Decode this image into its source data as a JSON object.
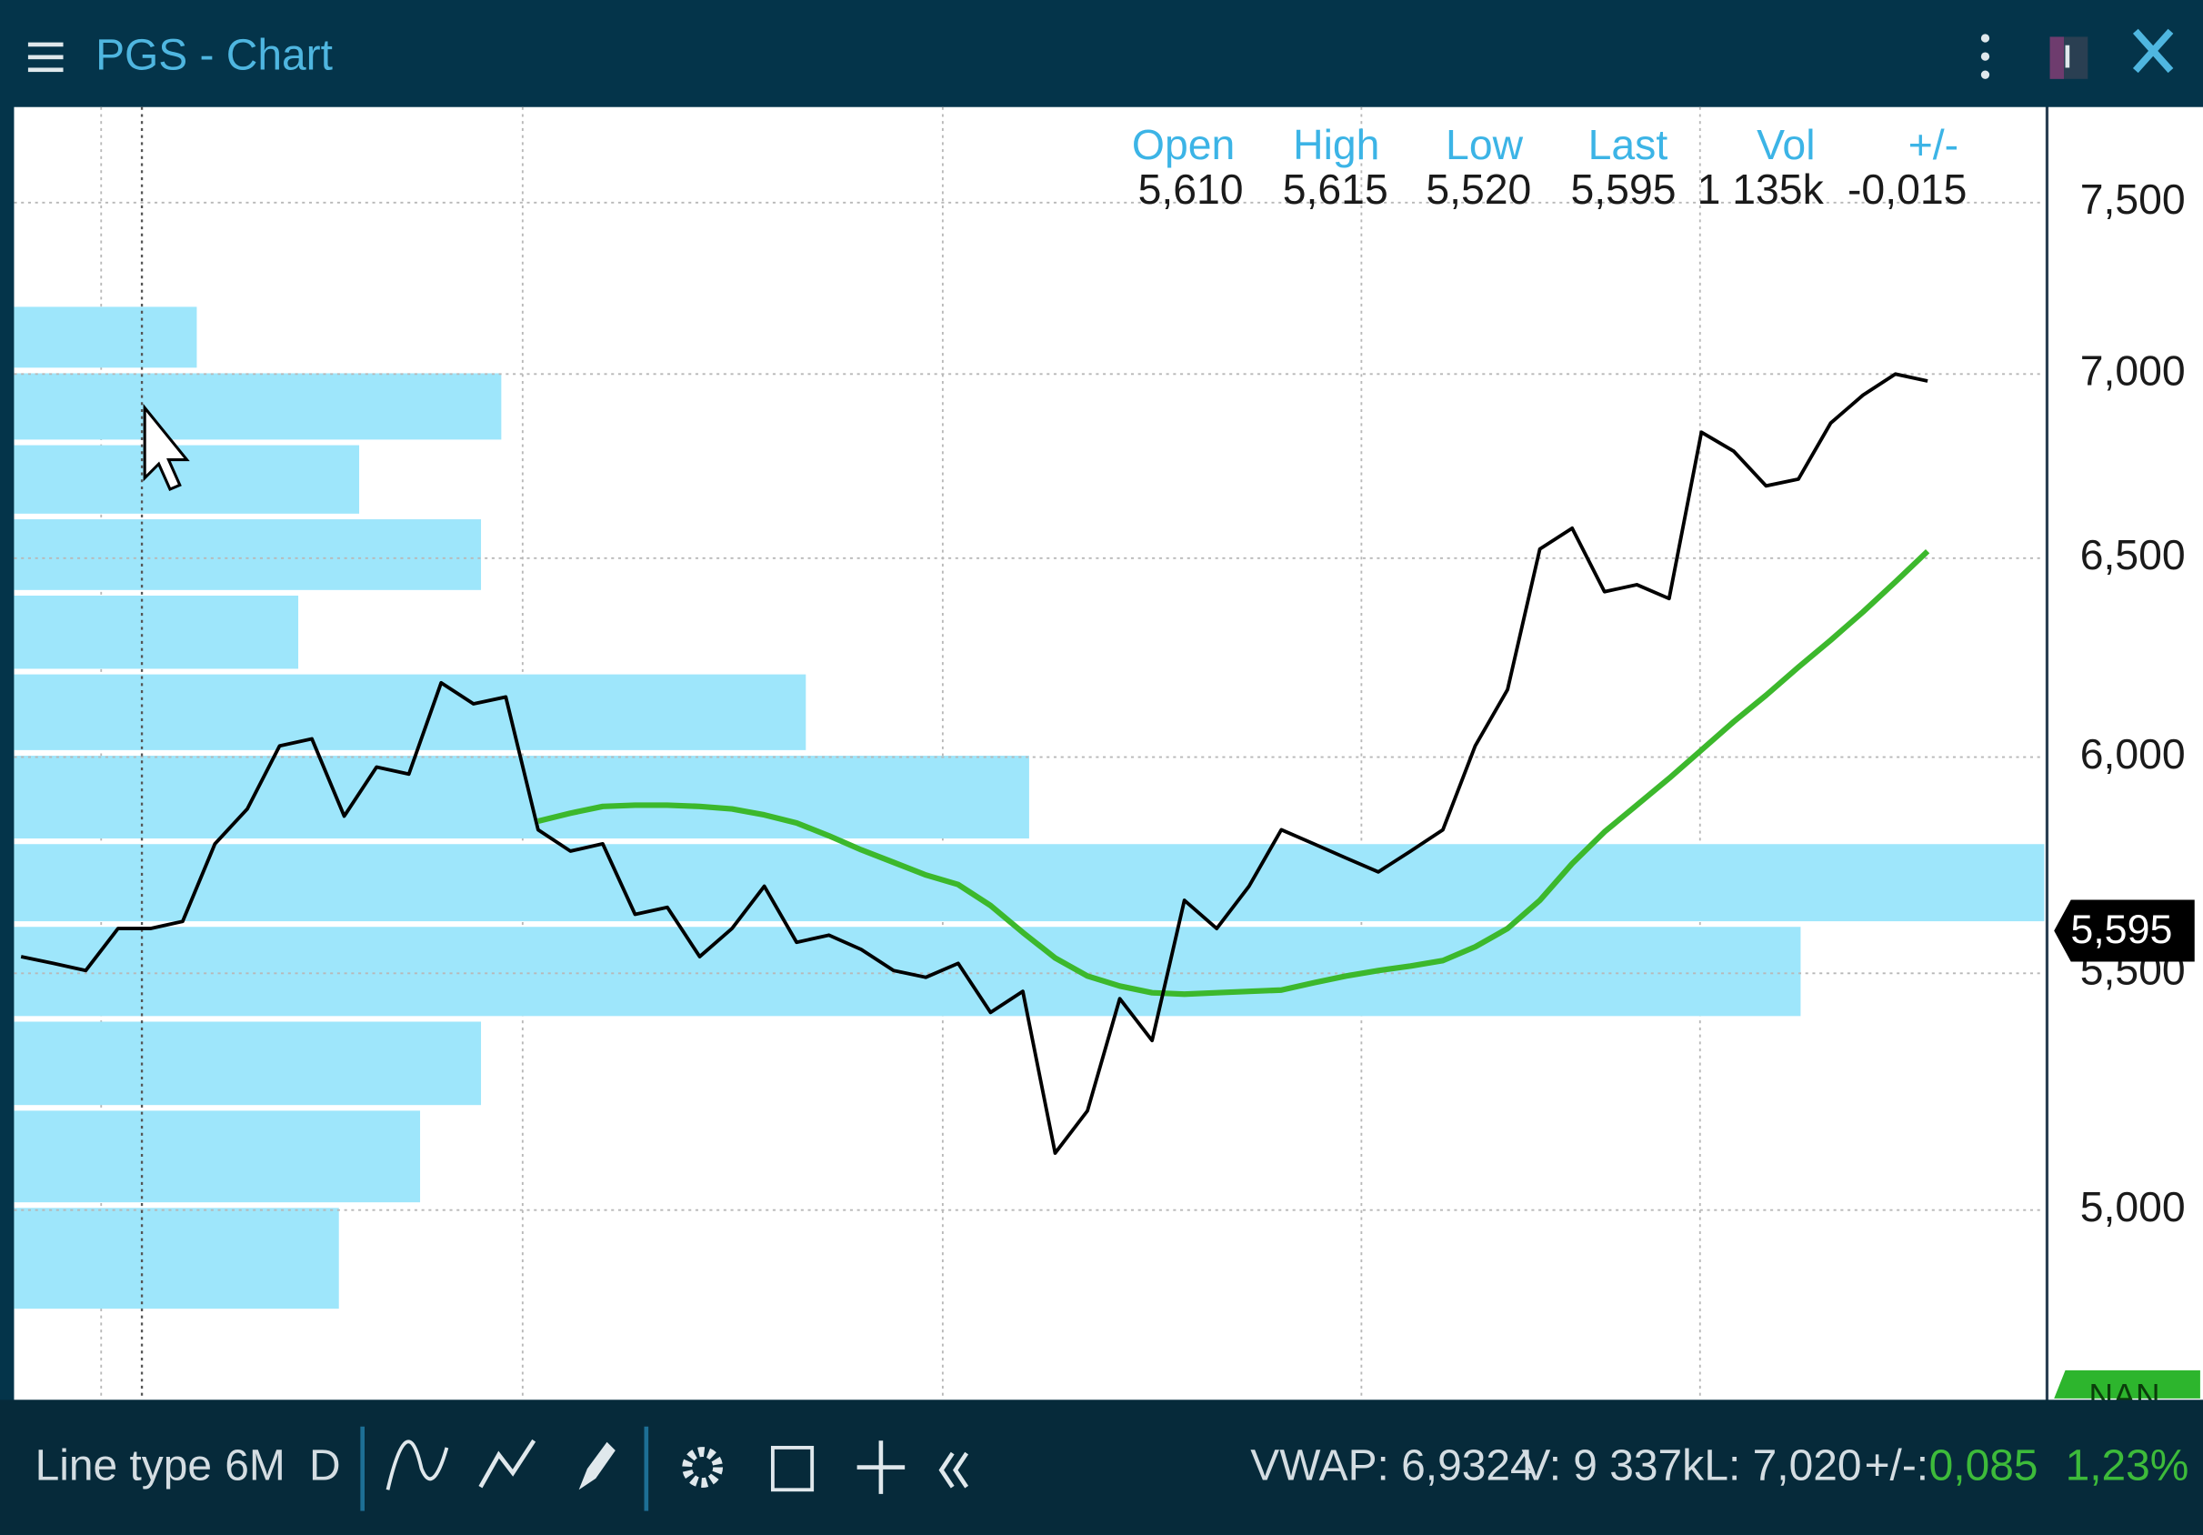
{
  "header": {
    "title": "PGS - Chart"
  },
  "quote": {
    "labels": [
      "Open",
      "High",
      "Low",
      "Last",
      "Vol",
      "+/-"
    ],
    "values": [
      "5,610",
      "5,615",
      "5,520",
      "5,595",
      "1 135k",
      "-0,015"
    ]
  },
  "chart_data": {
    "type": "line",
    "log": true,
    "grid": true,
    "color": "#000000",
    "ylim": [
      4635,
      7794
    ],
    "yticks": [
      {
        "value": 5000,
        "label": "5,000"
      },
      {
        "value": 5500,
        "label": "5,500"
      },
      {
        "value": 6000,
        "label": "6,000"
      },
      {
        "value": 6500,
        "label": "6,500"
      },
      {
        "value": 7000,
        "label": "7,000"
      },
      {
        "value": 7500,
        "label": "7,500"
      }
    ],
    "values": [
      5537,
      5522,
      5506,
      5600,
      5600,
      5616,
      5794,
      5876,
      6027,
      6044,
      5859,
      5976,
      5959,
      6182,
      6130,
      6147,
      5827,
      5777,
      5794,
      5632,
      5648,
      5537,
      5600,
      5696,
      5569,
      5585,
      5553,
      5506,
      5491,
      5522,
      5414,
      5460,
      5116,
      5204,
      5444,
      5353,
      5664,
      5600,
      5696,
      5827,
      5794,
      5761,
      5729,
      5777,
      5827,
      6027,
      6165,
      6524,
      6579,
      6413,
      6431,
      6395,
      6838,
      6786,
      6692,
      6710,
      6863,
      6941,
      7000,
      6980
    ],
    "moving_average": {
      "color": "#3cb82c",
      "values": [
        null,
        null,
        null,
        null,
        null,
        null,
        null,
        null,
        null,
        null,
        null,
        null,
        null,
        null,
        null,
        null,
        5847,
        5866,
        5882,
        5885,
        5885,
        5882,
        5876,
        5862,
        5843,
        5813,
        5780,
        5751,
        5722,
        5700,
        5652,
        5591,
        5534,
        5494,
        5472,
        5457,
        5454,
        5457,
        5460,
        5463,
        5479,
        5494,
        5506,
        5516,
        5528,
        5559,
        5600,
        5664,
        5748,
        5822,
        5885,
        5949,
        6017,
        6086,
        6151,
        6221,
        6289,
        6361,
        6438,
        6518
      ]
    },
    "last_price": {
      "value": 5595,
      "label": "5,595"
    },
    "status_tag": "NAN",
    "volume_profile": {
      "color": "#9ee6fb",
      "xlim": [
        0,
        100
      ],
      "bins": [
        4800,
        5010,
        5210,
        5400,
        5610,
        5800,
        6010,
        6210,
        6410,
        6610,
        6810,
        7010,
        7200
      ],
      "values": [
        16,
        20,
        23,
        88,
        100,
        50,
        39,
        14,
        23,
        17,
        24,
        9
      ]
    }
  },
  "toolbar": {
    "left": [
      "Line type",
      "6M",
      "D"
    ],
    "stats": [
      "VWAP: 6,9324",
      "V: 9 337k",
      "L: 7,020",
      "+/-:",
      "0,085",
      "1,23%"
    ]
  }
}
